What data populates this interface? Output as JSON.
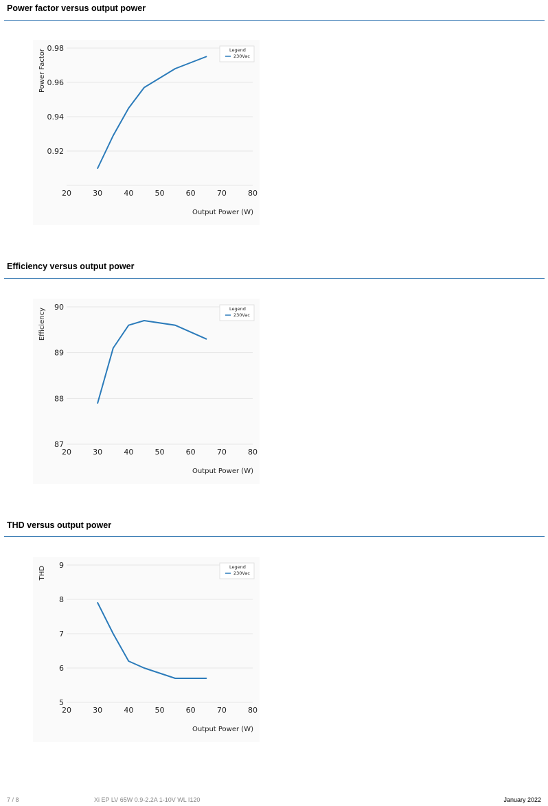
{
  "sections": [
    {
      "title": "Power factor versus output power"
    },
    {
      "title": "Efficiency versus output power"
    },
    {
      "title": "THD versus output power"
    }
  ],
  "footer": {
    "page": "7 / 8",
    "product": "Xi EP LV 65W 0.9-2.2A 1-10V WL I120",
    "date": "January 2022"
  },
  "colors": {
    "series": "#2b7bba",
    "rule": "#3f7fb6",
    "grid": "#e6e6e6"
  },
  "chart_data": [
    {
      "type": "line",
      "title": "",
      "xlabel": "Output Power (W)",
      "ylabel": "Power Factor",
      "xlim": [
        20,
        80
      ],
      "ylim": [
        0.9,
        0.98
      ],
      "x_ticks": [
        20,
        30,
        40,
        50,
        60,
        70,
        80
      ],
      "y_ticks": [
        0.92,
        0.94,
        0.96,
        0.98
      ],
      "y_decimals": 2,
      "grid": true,
      "legend": {
        "title": "Legend",
        "position": "top-right"
      },
      "series": [
        {
          "name": "230Vac",
          "x": [
            30,
            35,
            40,
            45,
            55,
            65
          ],
          "y": [
            0.91,
            0.929,
            0.945,
            0.957,
            0.968,
            0.975
          ]
        }
      ]
    },
    {
      "type": "line",
      "title": "",
      "xlabel": "Output Power (W)",
      "ylabel": "Efficiency",
      "xlim": [
        20,
        80
      ],
      "ylim": [
        87,
        90
      ],
      "x_ticks": [
        20,
        30,
        40,
        50,
        60,
        70,
        80
      ],
      "y_ticks": [
        87,
        88,
        89,
        90
      ],
      "y_decimals": 0,
      "grid": true,
      "legend": {
        "title": "Legend",
        "position": "top-right"
      },
      "series": [
        {
          "name": "230Vac",
          "x": [
            30,
            35,
            40,
            45,
            55,
            65
          ],
          "y": [
            87.9,
            89.1,
            89.6,
            89.7,
            89.6,
            89.3
          ]
        }
      ]
    },
    {
      "type": "line",
      "title": "",
      "xlabel": "Output Power (W)",
      "ylabel": "THD",
      "xlim": [
        20,
        80
      ],
      "ylim": [
        5,
        9
      ],
      "x_ticks": [
        20,
        30,
        40,
        50,
        60,
        70,
        80
      ],
      "y_ticks": [
        5,
        6,
        7,
        8,
        9
      ],
      "y_decimals": 0,
      "grid": true,
      "legend": {
        "title": "Legend",
        "position": "top-right"
      },
      "series": [
        {
          "name": "230Vac",
          "x": [
            30,
            35,
            40,
            45,
            55,
            65
          ],
          "y": [
            7.9,
            7.0,
            6.2,
            6.0,
            5.7,
            5.7
          ]
        }
      ]
    }
  ]
}
